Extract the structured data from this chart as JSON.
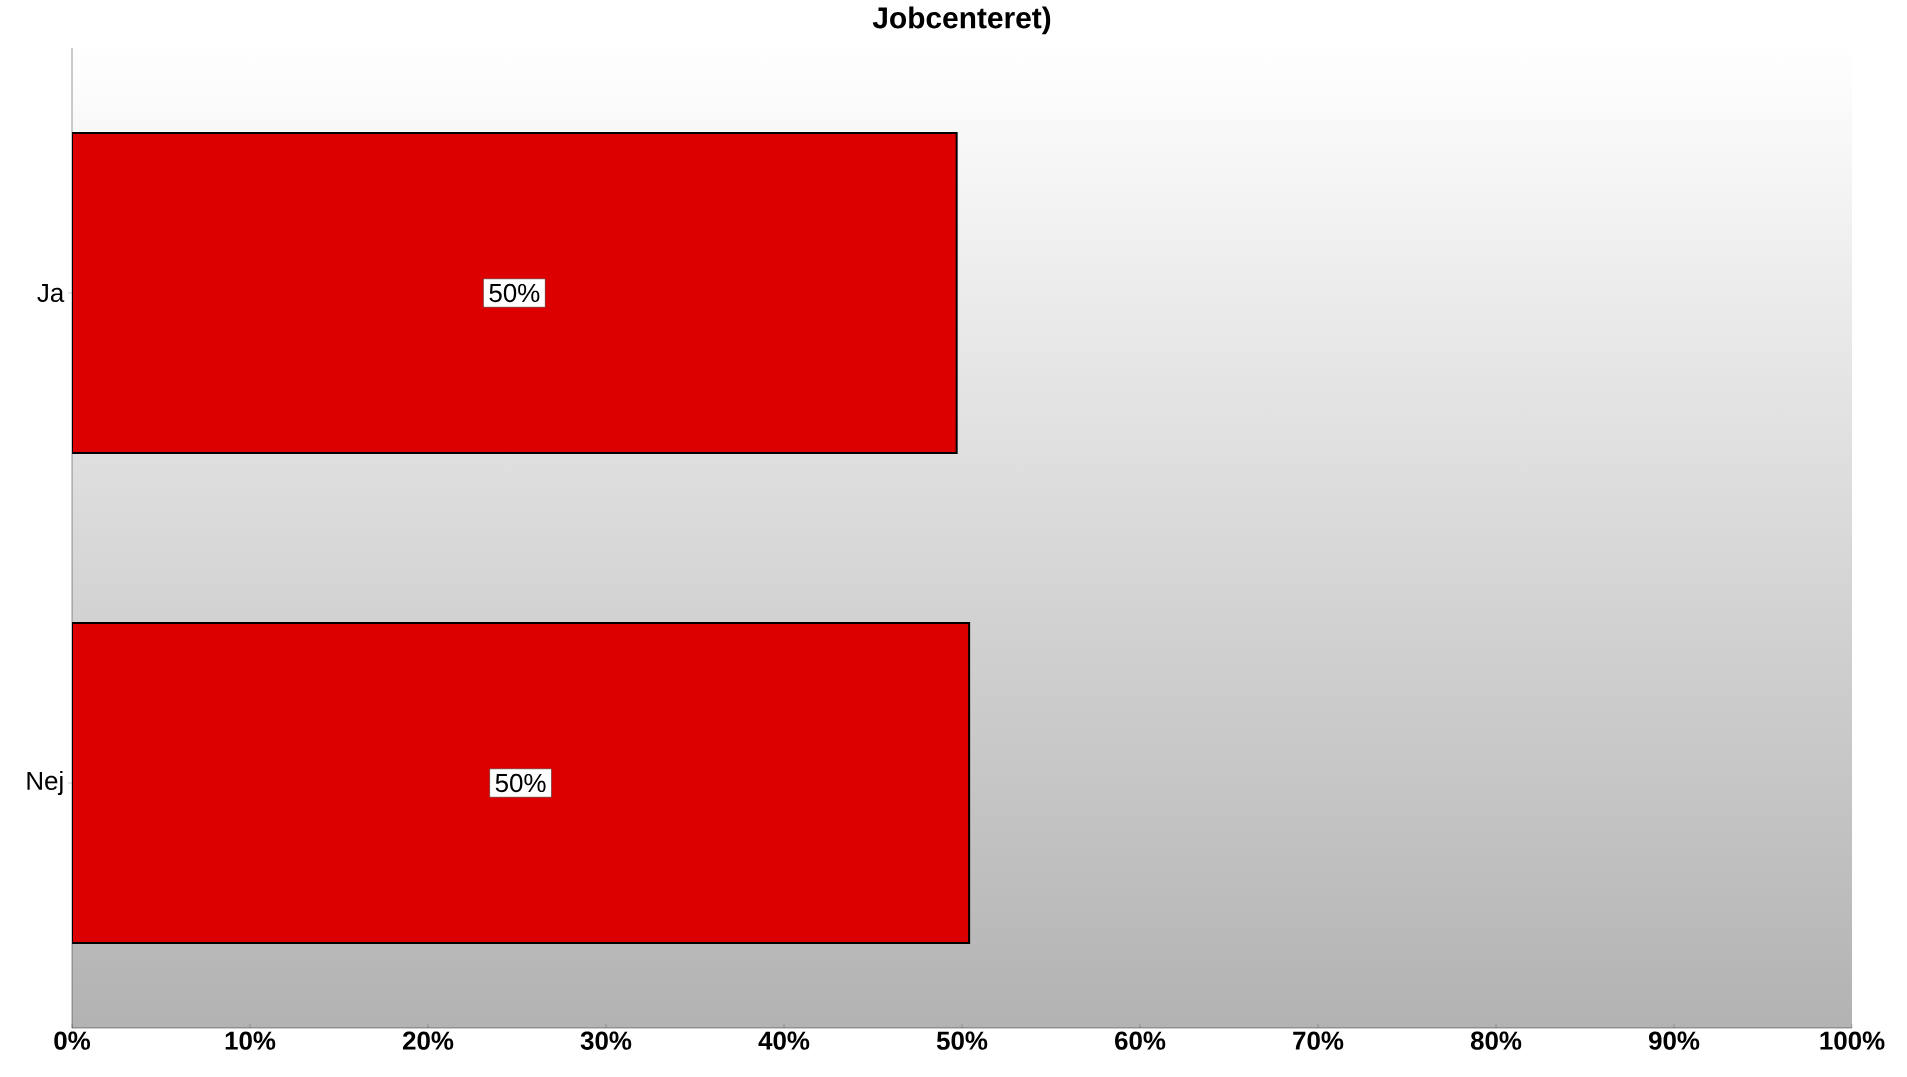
{
  "chart_data": {
    "type": "bar",
    "orientation": "horizontal",
    "title": "Jobcenteret)",
    "categories": [
      "Ja",
      "Nej"
    ],
    "values": [
      49.7,
      50.4
    ],
    "value_labels": [
      "50%",
      "50%"
    ],
    "color": "#dd0000",
    "xlim": [
      0,
      100
    ],
    "xticks": [
      {
        "value": 0,
        "label": "0%"
      },
      {
        "value": 10,
        "label": "10%"
      },
      {
        "value": 20,
        "label": "20%"
      },
      {
        "value": 30,
        "label": "30%"
      },
      {
        "value": 40,
        "label": "40%"
      },
      {
        "value": 50,
        "label": "50%"
      },
      {
        "value": 60,
        "label": "60%"
      },
      {
        "value": 70,
        "label": "70%"
      },
      {
        "value": 80,
        "label": "80%"
      },
      {
        "value": 90,
        "label": "90%"
      },
      {
        "value": 100,
        "label": "100%"
      }
    ],
    "grid": false
  }
}
